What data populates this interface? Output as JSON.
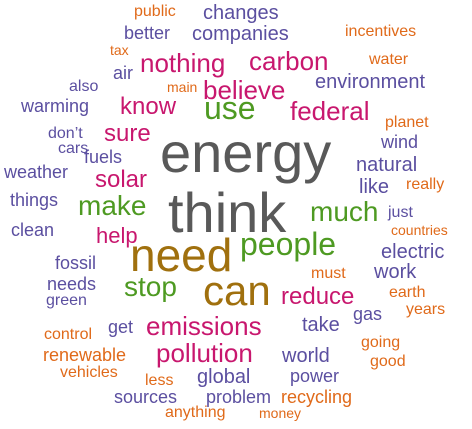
{
  "colors": {
    "gray": "#595959",
    "purple": "#5b4fa0",
    "magenta": "#c8176e",
    "green": "#4e9a22",
    "orange": "#e06a1a",
    "brown": "#a0700e"
  },
  "words": [
    {
      "text": "energy",
      "color": "gray"
    },
    {
      "text": "think",
      "color": "gray"
    },
    {
      "text": "need",
      "color": "brown"
    },
    {
      "text": "can",
      "color": "brown"
    },
    {
      "text": "people",
      "color": "green"
    },
    {
      "text": "use",
      "color": "green"
    },
    {
      "text": "make",
      "color": "green"
    },
    {
      "text": "much",
      "color": "green"
    },
    {
      "text": "stop",
      "color": "green"
    },
    {
      "text": "believe",
      "color": "magenta"
    },
    {
      "text": "carbon",
      "color": "magenta"
    },
    {
      "text": "nothing",
      "color": "magenta"
    },
    {
      "text": "federal",
      "color": "magenta"
    },
    {
      "text": "know",
      "color": "magenta"
    },
    {
      "text": "solar",
      "color": "magenta"
    },
    {
      "text": "sure",
      "color": "magenta"
    },
    {
      "text": "help",
      "color": "magenta"
    },
    {
      "text": "reduce",
      "color": "magenta"
    },
    {
      "text": "emissions",
      "color": "magenta"
    },
    {
      "text": "pollution",
      "color": "magenta"
    },
    {
      "text": "companies",
      "color": "purple"
    },
    {
      "text": "environment",
      "color": "purple"
    },
    {
      "text": "changes",
      "color": "purple"
    },
    {
      "text": "better",
      "color": "purple"
    },
    {
      "text": "warming",
      "color": "purple"
    },
    {
      "text": "air",
      "color": "purple"
    },
    {
      "text": "fuels",
      "color": "purple"
    },
    {
      "text": "weather",
      "color": "purple"
    },
    {
      "text": "things",
      "color": "purple"
    },
    {
      "text": "clean",
      "color": "purple"
    },
    {
      "text": "fossil",
      "color": "purple"
    },
    {
      "text": "needs",
      "color": "purple"
    },
    {
      "text": "green",
      "color": "purple"
    },
    {
      "text": "get",
      "color": "purple"
    },
    {
      "text": "global",
      "color": "purple"
    },
    {
      "text": "world",
      "color": "purple"
    },
    {
      "text": "power",
      "color": "purple"
    },
    {
      "text": "natural",
      "color": "purple"
    },
    {
      "text": "like",
      "color": "purple"
    },
    {
      "text": "electric",
      "color": "purple"
    },
    {
      "text": "work",
      "color": "purple"
    },
    {
      "text": "take",
      "color": "purple"
    },
    {
      "text": "gas",
      "color": "purple"
    },
    {
      "text": "wind",
      "color": "purple"
    },
    {
      "text": "just",
      "color": "purple"
    },
    {
      "text": "also",
      "color": "purple"
    },
    {
      "text": "don’t",
      "color": "purple"
    },
    {
      "text": "cars",
      "color": "purple"
    },
    {
      "text": "sources",
      "color": "purple"
    },
    {
      "text": "problem",
      "color": "purple"
    },
    {
      "text": "public",
      "color": "orange"
    },
    {
      "text": "incentives",
      "color": "orange"
    },
    {
      "text": "tax",
      "color": "orange"
    },
    {
      "text": "water",
      "color": "orange"
    },
    {
      "text": "main",
      "color": "orange"
    },
    {
      "text": "planet",
      "color": "orange"
    },
    {
      "text": "really",
      "color": "orange"
    },
    {
      "text": "countries",
      "color": "orange"
    },
    {
      "text": "must",
      "color": "orange"
    },
    {
      "text": "earth",
      "color": "orange"
    },
    {
      "text": "years",
      "color": "orange"
    },
    {
      "text": "control",
      "color": "orange"
    },
    {
      "text": "renewable",
      "color": "orange"
    },
    {
      "text": "going",
      "color": "orange"
    },
    {
      "text": "good",
      "color": "orange"
    },
    {
      "text": "vehicles",
      "color": "orange"
    },
    {
      "text": "less",
      "color": "orange"
    },
    {
      "text": "anything",
      "color": "orange"
    },
    {
      "text": "money",
      "color": "orange"
    },
    {
      "text": "recycling",
      "color": "orange"
    }
  ]
}
